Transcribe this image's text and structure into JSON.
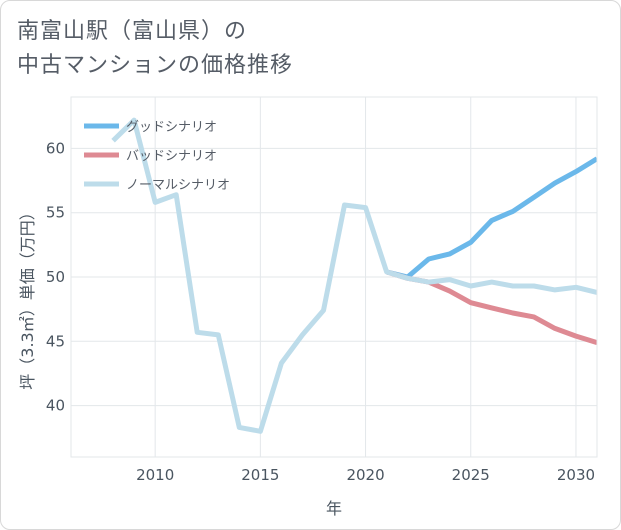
{
  "title": {
    "line1": "南富山駅（富山県）の",
    "line2": "中古マンションの価格推移"
  },
  "chart_data": {
    "type": "line",
    "xlabel": "年",
    "ylabel": "坪（3.3㎡）単価（万円）",
    "xlim": [
      2006,
      2031
    ],
    "ylim": [
      36,
      64
    ],
    "x_ticks": [
      2010,
      2015,
      2020,
      2025,
      2030
    ],
    "y_ticks": [
      40,
      45,
      50,
      55,
      60
    ],
    "grid": true,
    "legend_position": "top-left",
    "series": [
      {
        "name": "グッドシナリオ",
        "color": "#6bb8ea",
        "x": [
          2021,
          2022,
          2023,
          2024,
          2025,
          2026,
          2027,
          2028,
          2029,
          2030,
          2031
        ],
        "y": [
          50.4,
          50.0,
          51.4,
          51.8,
          52.7,
          54.4,
          55.1,
          56.2,
          57.3,
          58.2,
          59.2
        ]
      },
      {
        "name": "バッドシナリオ",
        "color": "#de8a93",
        "x": [
          2021,
          2022,
          2023,
          2024,
          2025,
          2026,
          2027,
          2028,
          2029,
          2030,
          2031
        ],
        "y": [
          50.4,
          49.9,
          49.6,
          48.9,
          48.0,
          47.6,
          47.2,
          46.9,
          46.0,
          45.4,
          44.9
        ]
      },
      {
        "name": "ノーマルシナリオ",
        "color": "#bddcea",
        "x": [
          2008,
          2009,
          2010,
          2011,
          2012,
          2013,
          2014,
          2015,
          2016,
          2017,
          2018,
          2019,
          2020,
          2021,
          2022,
          2023,
          2024,
          2025,
          2026,
          2027,
          2028,
          2029,
          2030,
          2031
        ],
        "y": [
          60.6,
          62.2,
          55.8,
          56.4,
          45.7,
          45.5,
          38.3,
          38.0,
          43.3,
          45.5,
          47.4,
          55.6,
          55.4,
          50.4,
          49.9,
          49.6,
          49.8,
          49.3,
          49.6,
          49.3,
          49.3,
          49.0,
          49.2,
          48.8
        ]
      }
    ]
  }
}
